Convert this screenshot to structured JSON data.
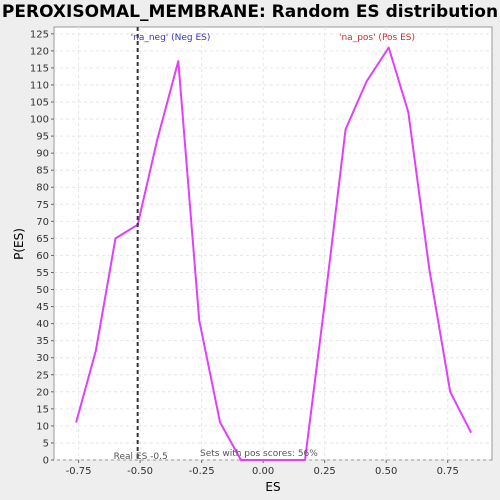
{
  "chart_data": {
    "type": "line",
    "title": "PEROXISOMAL_MEMBRANE: Random ES distribution",
    "xlabel": "ES",
    "ylabel": "P(ES)",
    "xlim": [
      -0.85,
      0.93
    ],
    "ylim": [
      0,
      127
    ],
    "x_ticks": [
      -0.75,
      -0.5,
      -0.25,
      0.0,
      0.25,
      0.5,
      0.75
    ],
    "x_tick_labels": [
      "-0.75",
      "-0.50",
      "-0.25",
      "0.00",
      "0.25",
      "0.50",
      "0.75"
    ],
    "y_ticks": [
      0,
      5,
      10,
      15,
      20,
      25,
      30,
      35,
      40,
      45,
      50,
      55,
      60,
      65,
      70,
      75,
      80,
      85,
      90,
      95,
      100,
      105,
      110,
      115,
      120,
      125
    ],
    "grid": true,
    "series": [
      {
        "color": "#e040fb",
        "x": [
          -0.76,
          -0.68,
          -0.6,
          -0.51,
          -0.43,
          -0.345,
          -0.26,
          -0.175,
          -0.09,
          -0.005,
          0.08,
          0.17,
          0.25,
          0.335,
          0.42,
          0.51,
          0.59,
          0.675,
          0.76,
          0.845
        ],
        "y": [
          11,
          32,
          65,
          69,
          94,
          117,
          41,
          11,
          0,
          0,
          0,
          0,
          46,
          97,
          111,
          121,
          102,
          56,
          20,
          8
        ]
      }
    ],
    "annotations": {
      "neg_label": "'na_neg' (Neg ES)",
      "neg_color": "#3333cc",
      "pos_label": "'na_pos' (Pos ES)",
      "pos_color": "#d62728",
      "real_es_label": "Real ES -0.5",
      "real_es_x": -0.51,
      "pos_scores_label": "Sets with pos scores: 56%"
    }
  }
}
